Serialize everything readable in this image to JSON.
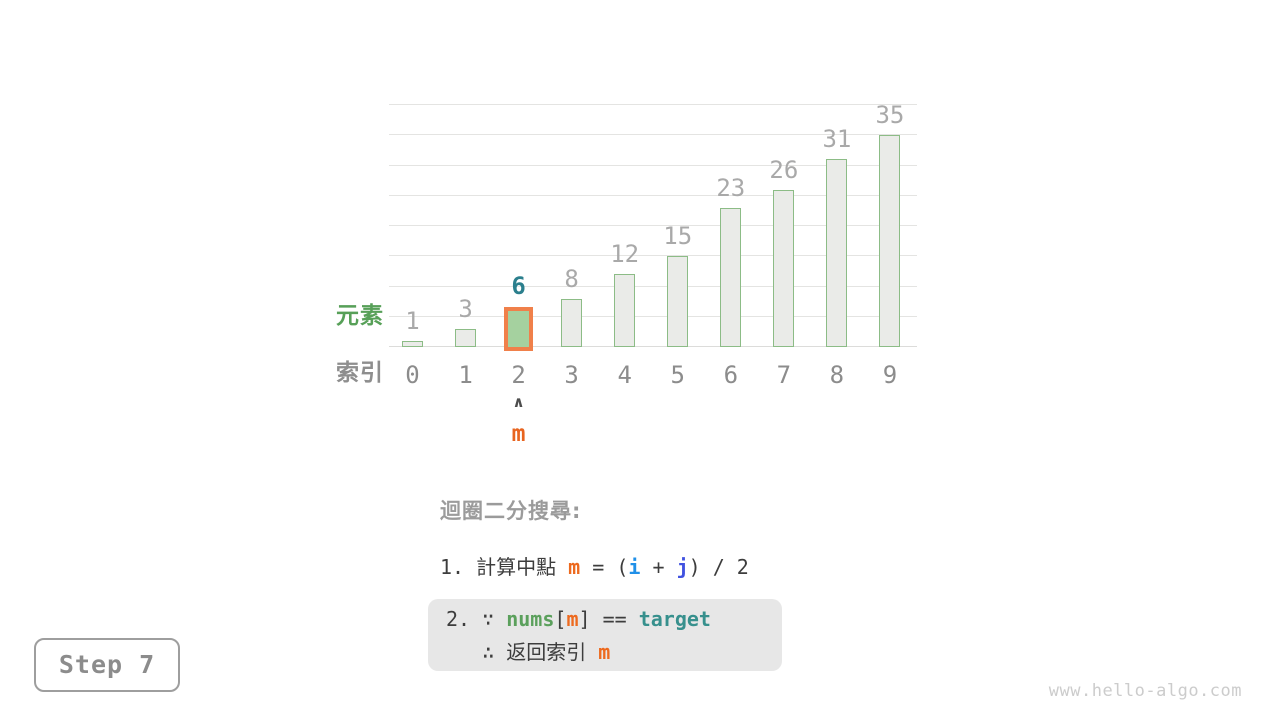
{
  "page": {
    "background": "#ffffff",
    "watermark": "www.hello-algo.com"
  },
  "step_label": "Step 7",
  "chart_data": {
    "type": "bar",
    "title": "",
    "categories": [
      "0",
      "1",
      "2",
      "3",
      "4",
      "5",
      "6",
      "7",
      "8",
      "9"
    ],
    "values": [
      1,
      3,
      6,
      8,
      12,
      15,
      23,
      26,
      31,
      35
    ],
    "xlabel": "索引",
    "ylabel": "元素",
    "ylim": [
      0,
      40
    ],
    "gridline_step": 5,
    "grid": "horizontal-on",
    "legend": "none",
    "highlight_index": 2,
    "row_labels": {
      "elements": "元素",
      "indices": "索引"
    },
    "pointer": {
      "index": 2,
      "caret": "∧",
      "label": "m"
    },
    "style": {
      "bar_fill": "#eaebe8",
      "bar_border": "#8cbc86",
      "highlight_fill": "#a5d19f",
      "highlight_border": "#f0804a",
      "value_label_color": "#a9a9a9",
      "highlight_value_color": "#2b7f8d",
      "index_label_color": "#8c8c8c",
      "elements_label_color": "#57a058",
      "indices_label_color": "#8e8e8e",
      "pointer_color": "#e8641f"
    }
  },
  "annotation": {
    "title": "迴圈二分搜尋:",
    "colors": {
      "text": "#3d3d3d",
      "orange": "#ed6a1f",
      "blue": "#2090e8",
      "indigo": "#4152e0",
      "green": "#5ba05c",
      "teal": "#37908d"
    },
    "step1_tokens": [
      {
        "t": "1. 計算中點 ",
        "c": "text"
      },
      {
        "t": "m",
        "c": "orange",
        "b": true
      },
      {
        "t": " = (",
        "c": "text"
      },
      {
        "t": "i",
        "c": "blue",
        "b": true
      },
      {
        "t": " + ",
        "c": "text"
      },
      {
        "t": "j",
        "c": "indigo",
        "b": true
      },
      {
        "t": ") / 2",
        "c": "text"
      }
    ],
    "step2_line1_tokens": [
      {
        "t": "2. ∵ ",
        "c": "text"
      },
      {
        "t": "nums",
        "c": "green",
        "b": true
      },
      {
        "t": "[",
        "c": "text"
      },
      {
        "t": "m",
        "c": "orange",
        "b": true
      },
      {
        "t": "] == ",
        "c": "text"
      },
      {
        "t": "target",
        "c": "teal",
        "b": true
      }
    ],
    "step2_line2_tokens": [
      {
        "t": "   ∴ 返回索引 ",
        "c": "text"
      },
      {
        "t": "m",
        "c": "orange",
        "b": true
      }
    ]
  }
}
